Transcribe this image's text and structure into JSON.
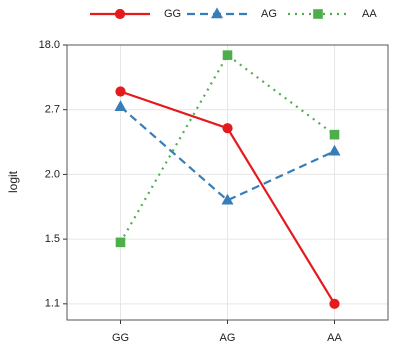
{
  "chart_data": {
    "type": "line",
    "y_label": "logit",
    "categories": [
      "GG",
      "AG",
      "AA"
    ],
    "series": [
      {
        "name": "GG",
        "color": "#e41a1c",
        "marker": "circle",
        "dash": "solid",
        "values": [
          7.0,
          2.5,
          1.1
        ]
      },
      {
        "name": "AG",
        "color": "#377eb8",
        "marker": "triangle",
        "dash": "dashed",
        "values": [
          3.4,
          1.8,
          2.25
        ]
      },
      {
        "name": "AA",
        "color": "#4daf4a",
        "marker": "square",
        "dash": "dotted",
        "values": [
          1.48,
          15.6,
          2.43
        ]
      }
    ],
    "ylim": [
      1.0,
      18.0
    ],
    "yticks": [
      {
        "value": 1.1,
        "label": "1.1"
      },
      {
        "value": 1.5,
        "label": "1.5"
      },
      {
        "value": 2.0,
        "label": "2.0"
      },
      {
        "value": 2.7,
        "label": "2.7"
      },
      {
        "value": 18.0,
        "label": "18.0"
      }
    ],
    "grid": true,
    "legend": "top"
  }
}
